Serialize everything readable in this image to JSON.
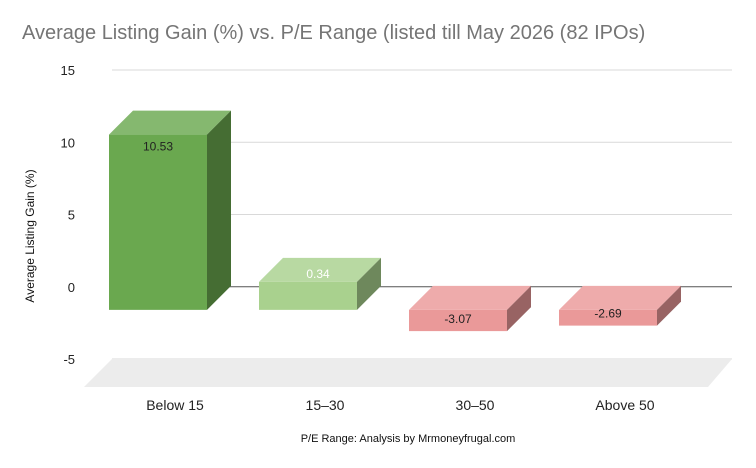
{
  "chart_data": {
    "type": "bar",
    "title": "Average Listing Gain (%) vs. P/E Range (listed till May 2026 (82 IPOs)",
    "xlabel": "P/E Range: Analysis by Mrmoneyfrugal.com",
    "ylabel": "Average Listing Gain (%)",
    "categories": [
      "Below 15",
      "15–30",
      "30–50",
      "Above 50"
    ],
    "values": [
      10.53,
      0.34,
      -3.07,
      -2.69
    ],
    "data_labels": [
      "10.53",
      "0.34",
      "-3.07",
      "-2.69"
    ],
    "ylim": [
      -5,
      15
    ],
    "yticks": [
      "15",
      "10",
      "5",
      "0",
      "-5"
    ],
    "grid": true,
    "style": "3d-column",
    "colors": {
      "positive": "#6aa84f",
      "positive_small": "#a9d18e",
      "negative": "#ea9999"
    }
  }
}
